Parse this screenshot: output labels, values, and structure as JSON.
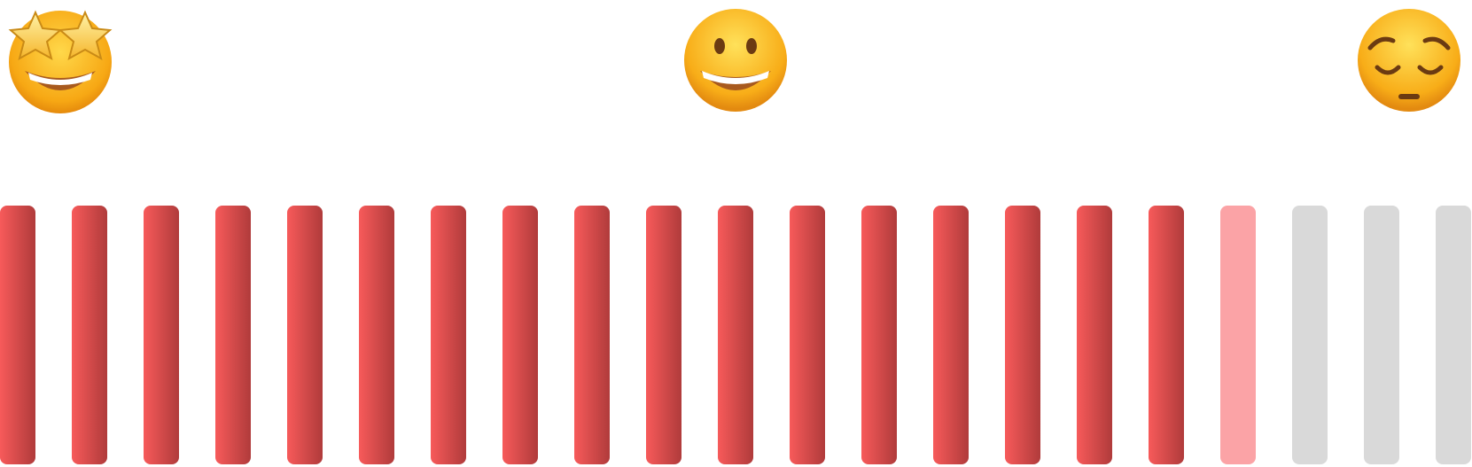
{
  "rating_scale": {
    "emojis": [
      {
        "icon": "star-struck-emoji-icon",
        "meaning": "excellent"
      },
      {
        "icon": "grinning-face-emoji-icon",
        "meaning": "neutral-good"
      },
      {
        "icon": "pensive-face-emoji-icon",
        "meaning": "poor"
      }
    ],
    "meter": {
      "total_segments": 21,
      "filled_segments": 17,
      "partial_segments": 1,
      "empty_segments": 3,
      "value_fraction": 0.833,
      "colors": {
        "filled_start": "#f75a5a",
        "filled_end": "#b03b3b",
        "partial": "#fba3a6",
        "empty": "#d9d9d9"
      }
    }
  }
}
